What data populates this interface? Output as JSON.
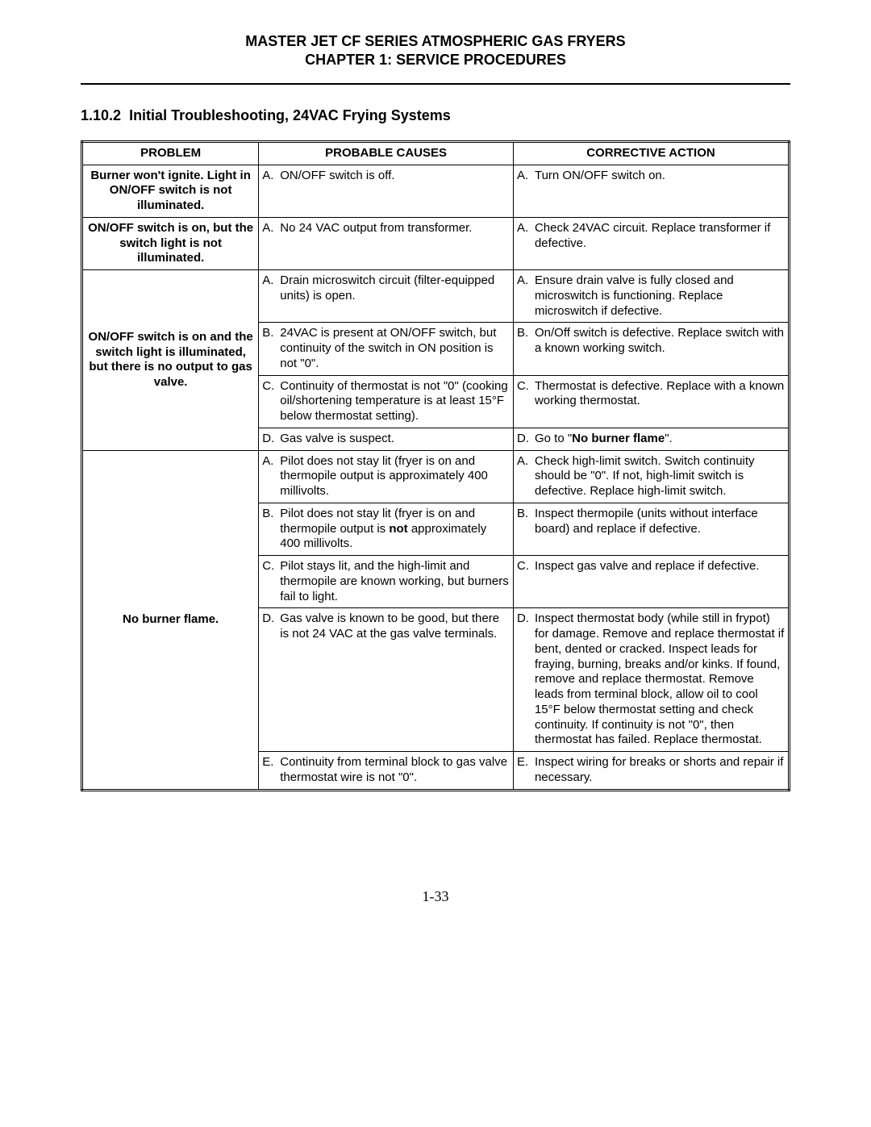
{
  "header": {
    "title_line1": "MASTER JET CF SERIES ATMOSPHERIC GAS FRYERS",
    "title_line2": "CHAPTER 1:  SERVICE PROCEDURES"
  },
  "section": {
    "number": "1.10.2",
    "title": "Initial Troubleshooting, 24VAC Frying Systems"
  },
  "table": {
    "headers": {
      "problem": "PROBLEM",
      "cause": "PROBABLE CAUSES",
      "action": "CORRECTIVE ACTION"
    },
    "rows": [
      {
        "problem": "Burner won't ignite.  Light in ON/OFF switch is not illuminated.",
        "items": [
          {
            "letter": "A.",
            "cause": "ON/OFF switch is off.",
            "action": "Turn ON/OFF switch on."
          }
        ]
      },
      {
        "problem": "ON/OFF switch is on, but the switch light is not illuminated.",
        "items": [
          {
            "letter": "A.",
            "cause": "No 24 VAC output from transformer.",
            "action": "Check 24VAC circuit.  Replace transformer if defective."
          }
        ]
      },
      {
        "problem": "ON/OFF switch is on and the switch light is illuminated, but there is no output to gas valve.",
        "items": [
          {
            "letter": "A.",
            "cause": "Drain microswitch circuit (filter-equipped units) is open.",
            "action": "Ensure drain valve is fully closed and microswitch is functioning.  Replace microswitch if defective."
          },
          {
            "letter": "B.",
            "cause": "24VAC is present at ON/OFF switch, but continuity of the switch in ON position is not \"0\".",
            "action": "On/Off switch is defective.  Replace switch with a known working switch."
          },
          {
            "letter": "C.",
            "cause": "Continuity of thermostat is not \"0\" (cooking oil/shortening temperature is at least 15°F below thermostat setting).",
            "action": "Thermostat is defective.  Replace with a known working thermostat."
          },
          {
            "letter": "D.",
            "cause": "Gas valve is suspect.",
            "action_prefix": "Go to \"",
            "action_bold": "No burner flame",
            "action_suffix": "\"."
          }
        ]
      },
      {
        "problem": "No burner flame.",
        "items": [
          {
            "letter": "A.",
            "cause_prefix": "Pilot does not stay lit (fryer is on and thermopile output is approximately 400 millivolts.",
            "action": "Check high-limit switch.  Switch continuity should be \"0\". If not, high-limit switch is defective.  Replace high-limit switch."
          },
          {
            "letter": "B.",
            "cause_prefix": "Pilot does not stay lit (fryer is on and thermopile output is ",
            "cause_bold": "not",
            "cause_suffix": " approximately 400 millivolts.",
            "action": "Inspect thermopile (units without interface board) and replace if defective."
          },
          {
            "letter": "C.",
            "cause": "Pilot stays lit, and the high-limit and thermopile are known working, but burners fail to light.",
            "action": "Inspect gas valve and replace if defective."
          },
          {
            "letter": "D.",
            "cause": "Gas valve is known to be good, but there is not 24 VAC at the gas valve terminals.",
            "action": "Inspect thermostat body (while still in frypot) for damage.  Remove and replace thermostat if bent, dented or cracked.  Inspect leads for fraying, burning, breaks and/or kinks.  If found, remove and replace thermostat.  Remove leads from terminal block, allow oil to cool 15°F below thermostat setting and check continuity.  If continuity is not \"0\", then thermostat has failed.  Replace thermostat."
          },
          {
            "letter": "E.",
            "cause": "Continuity from terminal block to gas valve thermostat wire is not \"0\".",
            "action": "Inspect wiring for breaks or shorts and repair if necessary."
          }
        ]
      }
    ]
  },
  "page_number": "1-33"
}
